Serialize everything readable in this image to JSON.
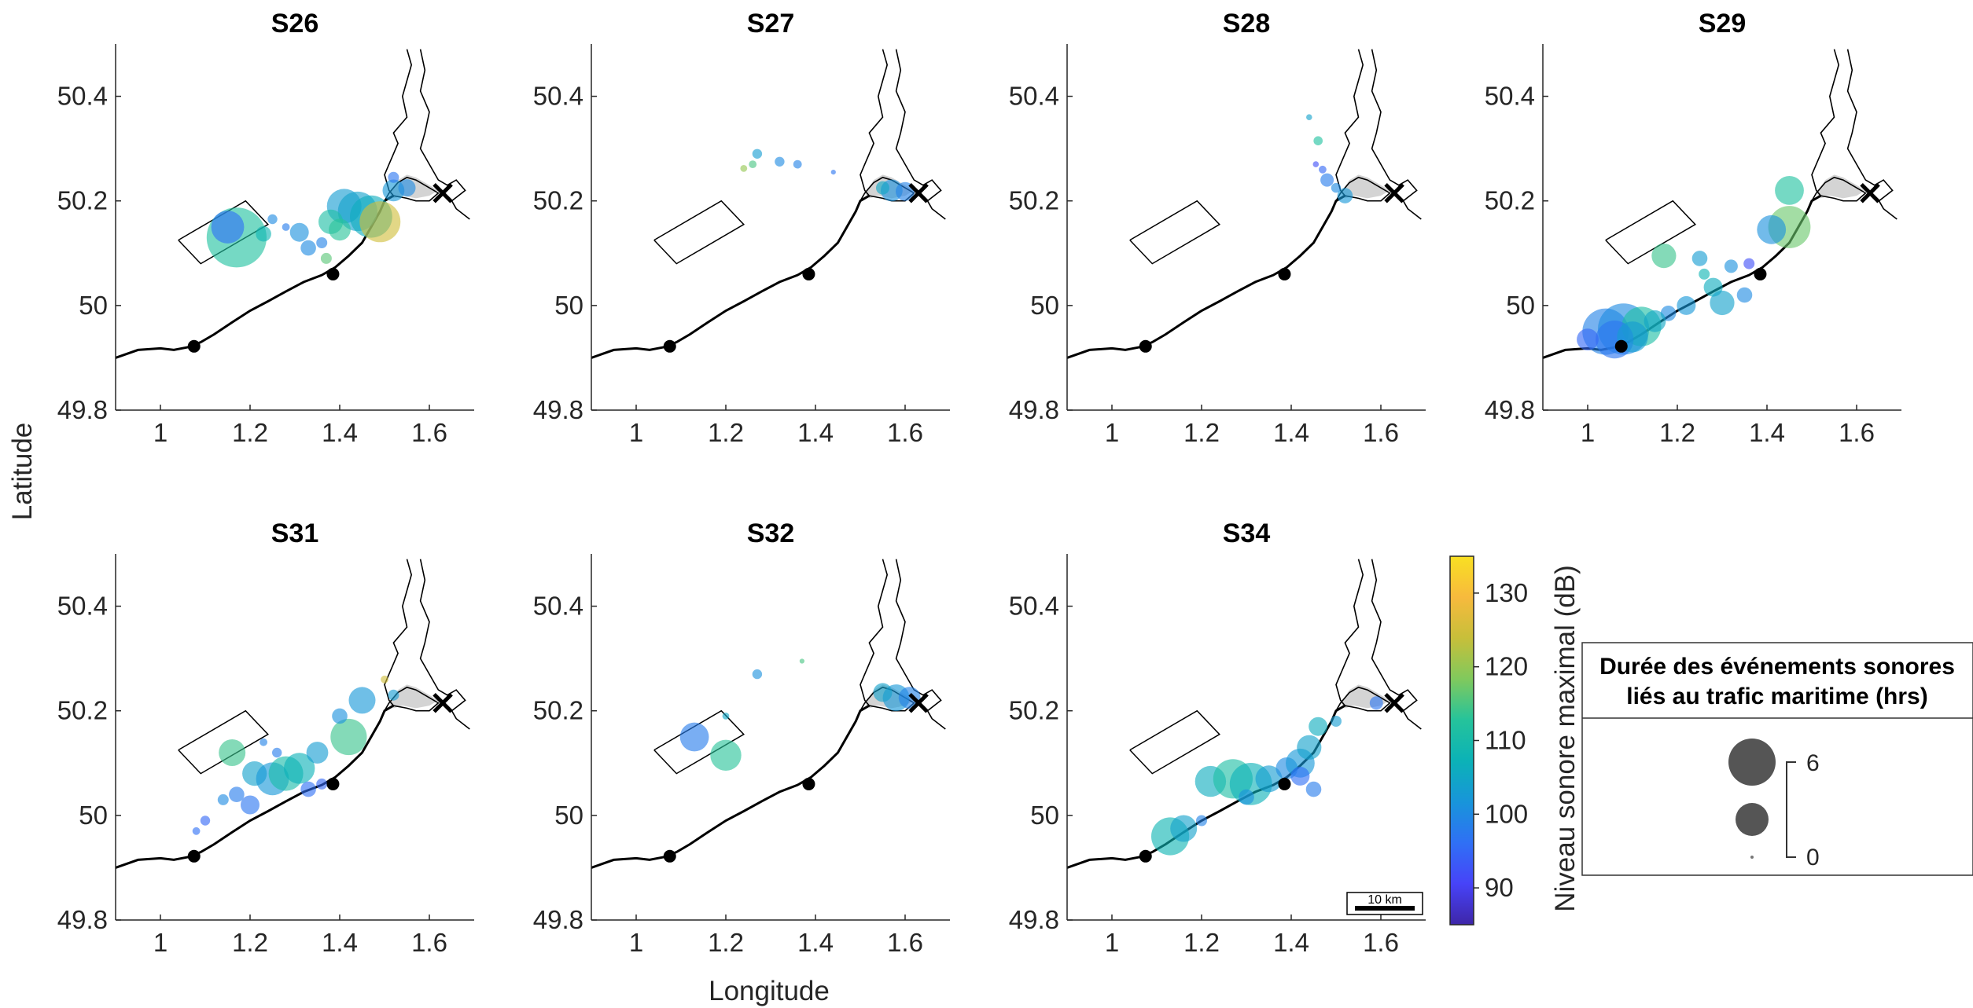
{
  "chart_data": {
    "type": "scatter",
    "subtype": "bubble-map",
    "xlabel": "Longitude",
    "ylabel": "Latitude",
    "xlim": [
      0.9,
      1.7
    ],
    "ylim": [
      49.8,
      50.5
    ],
    "xticks": [
      "1",
      "1.2",
      "1.4",
      "1.6"
    ],
    "yticks": [
      "49.8",
      "50",
      "50.2",
      "50.4"
    ],
    "grid": false,
    "colorbar": {
      "label": "Niveau sonore maximal (dB)",
      "range": [
        85,
        135
      ],
      "ticks": [
        "90",
        "100",
        "110",
        "120",
        "130"
      ],
      "colormap": "parula",
      "colors": [
        "#3e26a8",
        "#4743f8",
        "#2f70f5",
        "#1895da",
        "#0bb2b7",
        "#25c39b",
        "#80c95d",
        "#c7bf3a",
        "#f7ba3d",
        "#f9e022"
      ]
    },
    "size_legend": {
      "title_line1": "Durée des événements sonores",
      "title_line2": "liés au trafic maritime (hrs)",
      "max_label": "6",
      "min_label": "0"
    },
    "scale_bar": "10 km",
    "markers": {
      "dots": [
        {
          "lon": 1.075,
          "lat": 49.922
        },
        {
          "lon": 1.385,
          "lat": 50.06
        }
      ],
      "cross": {
        "lon": 1.63,
        "lat": 50.215
      }
    },
    "zone_rectangle": [
      [
        1.04,
        50.125
      ],
      [
        1.19,
        50.2
      ],
      [
        1.24,
        50.155
      ],
      [
        1.09,
        50.08
      ]
    ],
    "panels": [
      {
        "title": "S26",
        "points": [
          {
            "lon": 1.17,
            "lat": 50.13,
            "hours": 3.0,
            "db": 112
          },
          {
            "lon": 1.15,
            "lat": 50.15,
            "hours": 0.9,
            "db": 96
          },
          {
            "lon": 1.23,
            "lat": 50.137,
            "hours": 0.2,
            "db": 108
          },
          {
            "lon": 1.25,
            "lat": 50.165,
            "hours": 0.08,
            "db": 100
          },
          {
            "lon": 1.31,
            "lat": 50.14,
            "hours": 0.3,
            "db": 101
          },
          {
            "lon": 1.33,
            "lat": 50.11,
            "hours": 0.2,
            "db": 100
          },
          {
            "lon": 1.36,
            "lat": 50.12,
            "hours": 0.1,
            "db": 99
          },
          {
            "lon": 1.41,
            "lat": 50.19,
            "hours": 1.0,
            "db": 103
          },
          {
            "lon": 1.44,
            "lat": 50.18,
            "hours": 1.3,
            "db": 104
          },
          {
            "lon": 1.47,
            "lat": 50.17,
            "hours": 1.5,
            "db": 106
          },
          {
            "lon": 1.49,
            "lat": 50.16,
            "hours": 1.4,
            "db": 125
          },
          {
            "lon": 1.38,
            "lat": 50.16,
            "hours": 0.5,
            "db": 111
          },
          {
            "lon": 1.4,
            "lat": 50.145,
            "hours": 0.4,
            "db": 113
          },
          {
            "lon": 1.52,
            "lat": 50.22,
            "hours": 0.4,
            "db": 102
          },
          {
            "lon": 1.55,
            "lat": 50.225,
            "hours": 0.25,
            "db": 100
          },
          {
            "lon": 1.37,
            "lat": 50.09,
            "hours": 0.1,
            "db": 116
          },
          {
            "lon": 1.28,
            "lat": 50.15,
            "hours": 0.05,
            "db": 98
          },
          {
            "lon": 1.52,
            "lat": 50.245,
            "hours": 0.1,
            "db": 97
          }
        ]
      },
      {
        "title": "S27",
        "points": [
          {
            "lon": 1.27,
            "lat": 50.29,
            "hours": 0.08,
            "db": 103
          },
          {
            "lon": 1.32,
            "lat": 50.275,
            "hours": 0.08,
            "db": 100
          },
          {
            "lon": 1.36,
            "lat": 50.27,
            "hours": 0.06,
            "db": 99
          },
          {
            "lon": 1.26,
            "lat": 50.27,
            "hours": 0.05,
            "db": 115
          },
          {
            "lon": 1.24,
            "lat": 50.262,
            "hours": 0.04,
            "db": 120
          },
          {
            "lon": 1.57,
            "lat": 50.22,
            "hours": 0.4,
            "db": 101
          },
          {
            "lon": 1.6,
            "lat": 50.218,
            "hours": 0.3,
            "db": 99
          },
          {
            "lon": 1.55,
            "lat": 50.225,
            "hours": 0.15,
            "db": 105
          },
          {
            "lon": 1.44,
            "lat": 50.255,
            "hours": 0.02,
            "db": 97
          }
        ]
      },
      {
        "title": "S28",
        "points": [
          {
            "lon": 1.46,
            "lat": 50.315,
            "hours": 0.07,
            "db": 112
          },
          {
            "lon": 1.44,
            "lat": 50.36,
            "hours": 0.03,
            "db": 104
          },
          {
            "lon": 1.47,
            "lat": 50.26,
            "hours": 0.05,
            "db": 95
          },
          {
            "lon": 1.48,
            "lat": 50.24,
            "hours": 0.15,
            "db": 98
          },
          {
            "lon": 1.5,
            "lat": 50.225,
            "hours": 0.08,
            "db": 100
          },
          {
            "lon": 1.52,
            "lat": 50.21,
            "hours": 0.2,
            "db": 102
          },
          {
            "lon": 1.455,
            "lat": 50.27,
            "hours": 0.03,
            "db": 92
          }
        ]
      },
      {
        "title": "S29",
        "points": [
          {
            "lon": 1.45,
            "lat": 50.22,
            "hours": 0.7,
            "db": 112
          },
          {
            "lon": 1.45,
            "lat": 50.15,
            "hours": 1.5,
            "db": 117
          },
          {
            "lon": 1.41,
            "lat": 50.145,
            "hours": 0.7,
            "db": 101
          },
          {
            "lon": 1.17,
            "lat": 50.095,
            "hours": 0.5,
            "db": 114
          },
          {
            "lon": 1.25,
            "lat": 50.09,
            "hours": 0.2,
            "db": 103
          },
          {
            "lon": 1.32,
            "lat": 50.075,
            "hours": 0.15,
            "db": 101
          },
          {
            "lon": 1.28,
            "lat": 50.035,
            "hours": 0.3,
            "db": 106
          },
          {
            "lon": 1.3,
            "lat": 50.005,
            "hours": 0.5,
            "db": 104
          },
          {
            "lon": 1.35,
            "lat": 50.02,
            "hours": 0.2,
            "db": 100
          },
          {
            "lon": 1.22,
            "lat": 50.0,
            "hours": 0.3,
            "db": 102
          },
          {
            "lon": 1.18,
            "lat": 49.985,
            "hours": 0.2,
            "db": 100
          },
          {
            "lon": 1.04,
            "lat": 49.95,
            "hours": 1.8,
            "db": 99
          },
          {
            "lon": 1.08,
            "lat": 49.955,
            "hours": 2.2,
            "db": 100
          },
          {
            "lon": 1.12,
            "lat": 49.96,
            "hours": 1.3,
            "db": 111
          },
          {
            "lon": 1.06,
            "lat": 49.935,
            "hours": 1.2,
            "db": 97
          },
          {
            "lon": 1.1,
            "lat": 49.94,
            "hours": 0.8,
            "db": 103
          },
          {
            "lon": 1.15,
            "lat": 49.97,
            "hours": 0.4,
            "db": 105
          },
          {
            "lon": 1.0,
            "lat": 49.935,
            "hours": 0.4,
            "db": 95
          },
          {
            "lon": 1.36,
            "lat": 50.08,
            "hours": 0.1,
            "db": 92
          },
          {
            "lon": 1.26,
            "lat": 50.06,
            "hours": 0.1,
            "db": 108
          }
        ]
      },
      {
        "title": "S31",
        "points": [
          {
            "lon": 1.16,
            "lat": 50.12,
            "hours": 0.6,
            "db": 114
          },
          {
            "lon": 1.21,
            "lat": 50.08,
            "hours": 0.5,
            "db": 104
          },
          {
            "lon": 1.25,
            "lat": 50.07,
            "hours": 0.9,
            "db": 102
          },
          {
            "lon": 1.28,
            "lat": 50.08,
            "hours": 1.0,
            "db": 110
          },
          {
            "lon": 1.31,
            "lat": 50.09,
            "hours": 0.8,
            "db": 107
          },
          {
            "lon": 1.35,
            "lat": 50.12,
            "hours": 0.4,
            "db": 103
          },
          {
            "lon": 1.42,
            "lat": 50.15,
            "hours": 1.1,
            "db": 114
          },
          {
            "lon": 1.45,
            "lat": 50.22,
            "hours": 0.6,
            "db": 102
          },
          {
            "lon": 1.4,
            "lat": 50.19,
            "hours": 0.2,
            "db": 101
          },
          {
            "lon": 1.17,
            "lat": 50.04,
            "hours": 0.2,
            "db": 98
          },
          {
            "lon": 1.2,
            "lat": 50.02,
            "hours": 0.3,
            "db": 97
          },
          {
            "lon": 1.14,
            "lat": 50.03,
            "hours": 0.1,
            "db": 100
          },
          {
            "lon": 1.1,
            "lat": 49.99,
            "hours": 0.08,
            "db": 95
          },
          {
            "lon": 1.08,
            "lat": 49.97,
            "hours": 0.05,
            "db": 96
          },
          {
            "lon": 1.26,
            "lat": 50.12,
            "hours": 0.08,
            "db": 98
          },
          {
            "lon": 1.23,
            "lat": 50.14,
            "hours": 0.05,
            "db": 99
          },
          {
            "lon": 1.5,
            "lat": 50.26,
            "hours": 0.05,
            "db": 125
          },
          {
            "lon": 1.52,
            "lat": 50.23,
            "hours": 0.1,
            "db": 103
          },
          {
            "lon": 1.36,
            "lat": 50.06,
            "hours": 0.1,
            "db": 95
          },
          {
            "lon": 1.33,
            "lat": 50.05,
            "hours": 0.2,
            "db": 96
          }
        ]
      },
      {
        "title": "S32",
        "points": [
          {
            "lon": 1.13,
            "lat": 50.15,
            "hours": 0.7,
            "db": 98
          },
          {
            "lon": 1.2,
            "lat": 50.115,
            "hours": 0.8,
            "db": 113
          },
          {
            "lon": 1.27,
            "lat": 50.27,
            "hours": 0.08,
            "db": 101
          },
          {
            "lon": 1.2,
            "lat": 50.19,
            "hours": 0.04,
            "db": 105
          },
          {
            "lon": 1.58,
            "lat": 50.225,
            "hours": 0.6,
            "db": 102
          },
          {
            "lon": 1.61,
            "lat": 50.225,
            "hours": 0.4,
            "db": 99
          },
          {
            "lon": 1.55,
            "lat": 50.235,
            "hours": 0.3,
            "db": 104
          },
          {
            "lon": 1.37,
            "lat": 50.295,
            "hours": 0.02,
            "db": 115
          }
        ]
      },
      {
        "title": "S34",
        "points": [
          {
            "lon": 1.13,
            "lat": 49.96,
            "hours": 1.2,
            "db": 108
          },
          {
            "lon": 1.16,
            "lat": 49.975,
            "hours": 0.6,
            "db": 104
          },
          {
            "lon": 1.22,
            "lat": 50.065,
            "hours": 0.8,
            "db": 106
          },
          {
            "lon": 1.27,
            "lat": 50.07,
            "hours": 1.3,
            "db": 111
          },
          {
            "lon": 1.31,
            "lat": 50.06,
            "hours": 1.5,
            "db": 107
          },
          {
            "lon": 1.35,
            "lat": 50.07,
            "hours": 0.6,
            "db": 103
          },
          {
            "lon": 1.39,
            "lat": 50.09,
            "hours": 0.4,
            "db": 100
          },
          {
            "lon": 1.42,
            "lat": 50.1,
            "hours": 0.7,
            "db": 102
          },
          {
            "lon": 1.44,
            "lat": 50.13,
            "hours": 0.5,
            "db": 104
          },
          {
            "lon": 1.46,
            "lat": 50.17,
            "hours": 0.3,
            "db": 106
          },
          {
            "lon": 1.45,
            "lat": 50.05,
            "hours": 0.2,
            "db": 98
          },
          {
            "lon": 1.42,
            "lat": 50.075,
            "hours": 0.3,
            "db": 96
          },
          {
            "lon": 1.3,
            "lat": 50.035,
            "hours": 0.2,
            "db": 101
          },
          {
            "lon": 1.2,
            "lat": 49.99,
            "hours": 0.1,
            "db": 99
          },
          {
            "lon": 1.59,
            "lat": 50.215,
            "hours": 0.15,
            "db": 97
          },
          {
            "lon": 1.5,
            "lat": 50.18,
            "hours": 0.1,
            "db": 103
          }
        ]
      }
    ]
  }
}
